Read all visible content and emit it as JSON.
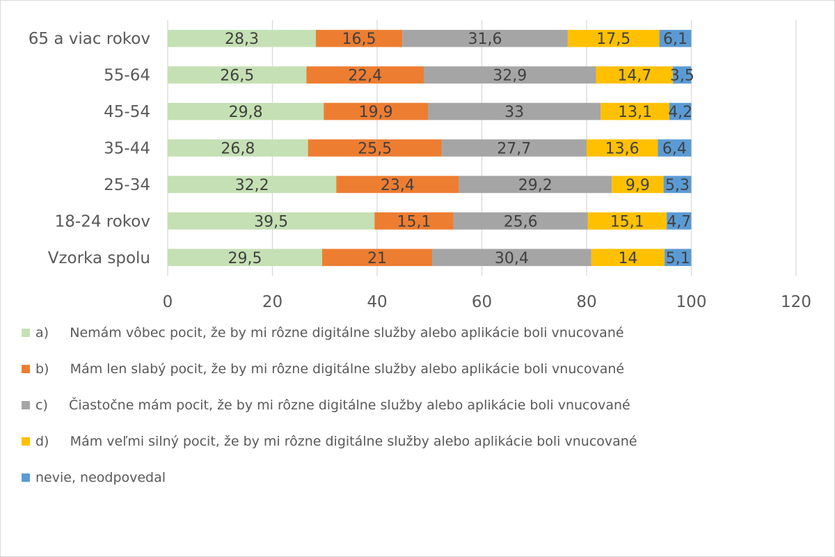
{
  "chart_data": {
    "type": "bar",
    "orientation": "horizontal",
    "stacked": true,
    "title": "",
    "xlabel": "",
    "ylabel": "",
    "xlim": [
      0,
      120
    ],
    "xticks": [
      "0",
      "20",
      "40",
      "60",
      "80",
      "100",
      "120"
    ],
    "grid": true,
    "legend_position": "bottom",
    "categories": [
      "65 a viac rokov",
      "55-64",
      "45-54",
      "35-44",
      "25-34",
      "18-24 rokov",
      "Vzorka spolu"
    ],
    "series": [
      {
        "name": "a)     Nemám vôbec pocit, že by mi rôzne digitálne služby alebo aplikácie boli vnucované",
        "color": "#c5e0b4",
        "values": [
          28.3,
          26.5,
          29.8,
          26.8,
          32.2,
          39.5,
          29.5
        ],
        "labels": [
          "28,3",
          "26,5",
          "29,8",
          "26,8",
          "32,2",
          "39,5",
          "29,5"
        ]
      },
      {
        "name": "b)     Mám len slabý pocit, že by mi rôzne digitálne služby alebo aplikácie boli vnucované",
        "color": "#ed7d31",
        "values": [
          16.5,
          22.4,
          19.9,
          25.5,
          23.4,
          15.1,
          21
        ],
        "labels": [
          "16,5",
          "22,4",
          "19,9",
          "25,5",
          "23,4",
          "15,1",
          "21"
        ]
      },
      {
        "name": "c)     Čiastočne mám pocit, že by mi rôzne digitálne služby alebo aplikácie boli vnucované",
        "color": "#a5a5a5",
        "values": [
          31.6,
          32.9,
          33,
          27.7,
          29.2,
          25.6,
          30.4
        ],
        "labels": [
          "31,6",
          "32,9",
          "33",
          "27,7",
          "29,2",
          "25,6",
          "30,4"
        ]
      },
      {
        "name": "d)     Mám veľmi silný pocit, že by mi rôzne digitálne služby alebo aplikácie boli vnucované",
        "color": "#ffc000",
        "values": [
          17.5,
          14.7,
          13.1,
          13.6,
          9.9,
          15.1,
          14
        ],
        "labels": [
          "17,5",
          "14,7",
          "13,1",
          "13,6",
          "9,9",
          "15,1",
          "14"
        ]
      },
      {
        "name": "nevie, neodpovedal",
        "color": "#5b9bd5",
        "values": [
          6.1,
          3.5,
          4.2,
          6.4,
          5.3,
          4.7,
          5.1
        ],
        "labels": [
          "6,1",
          "3,5",
          "4,2",
          "6,4",
          "5,3",
          "4,7",
          "5,1"
        ]
      }
    ]
  }
}
